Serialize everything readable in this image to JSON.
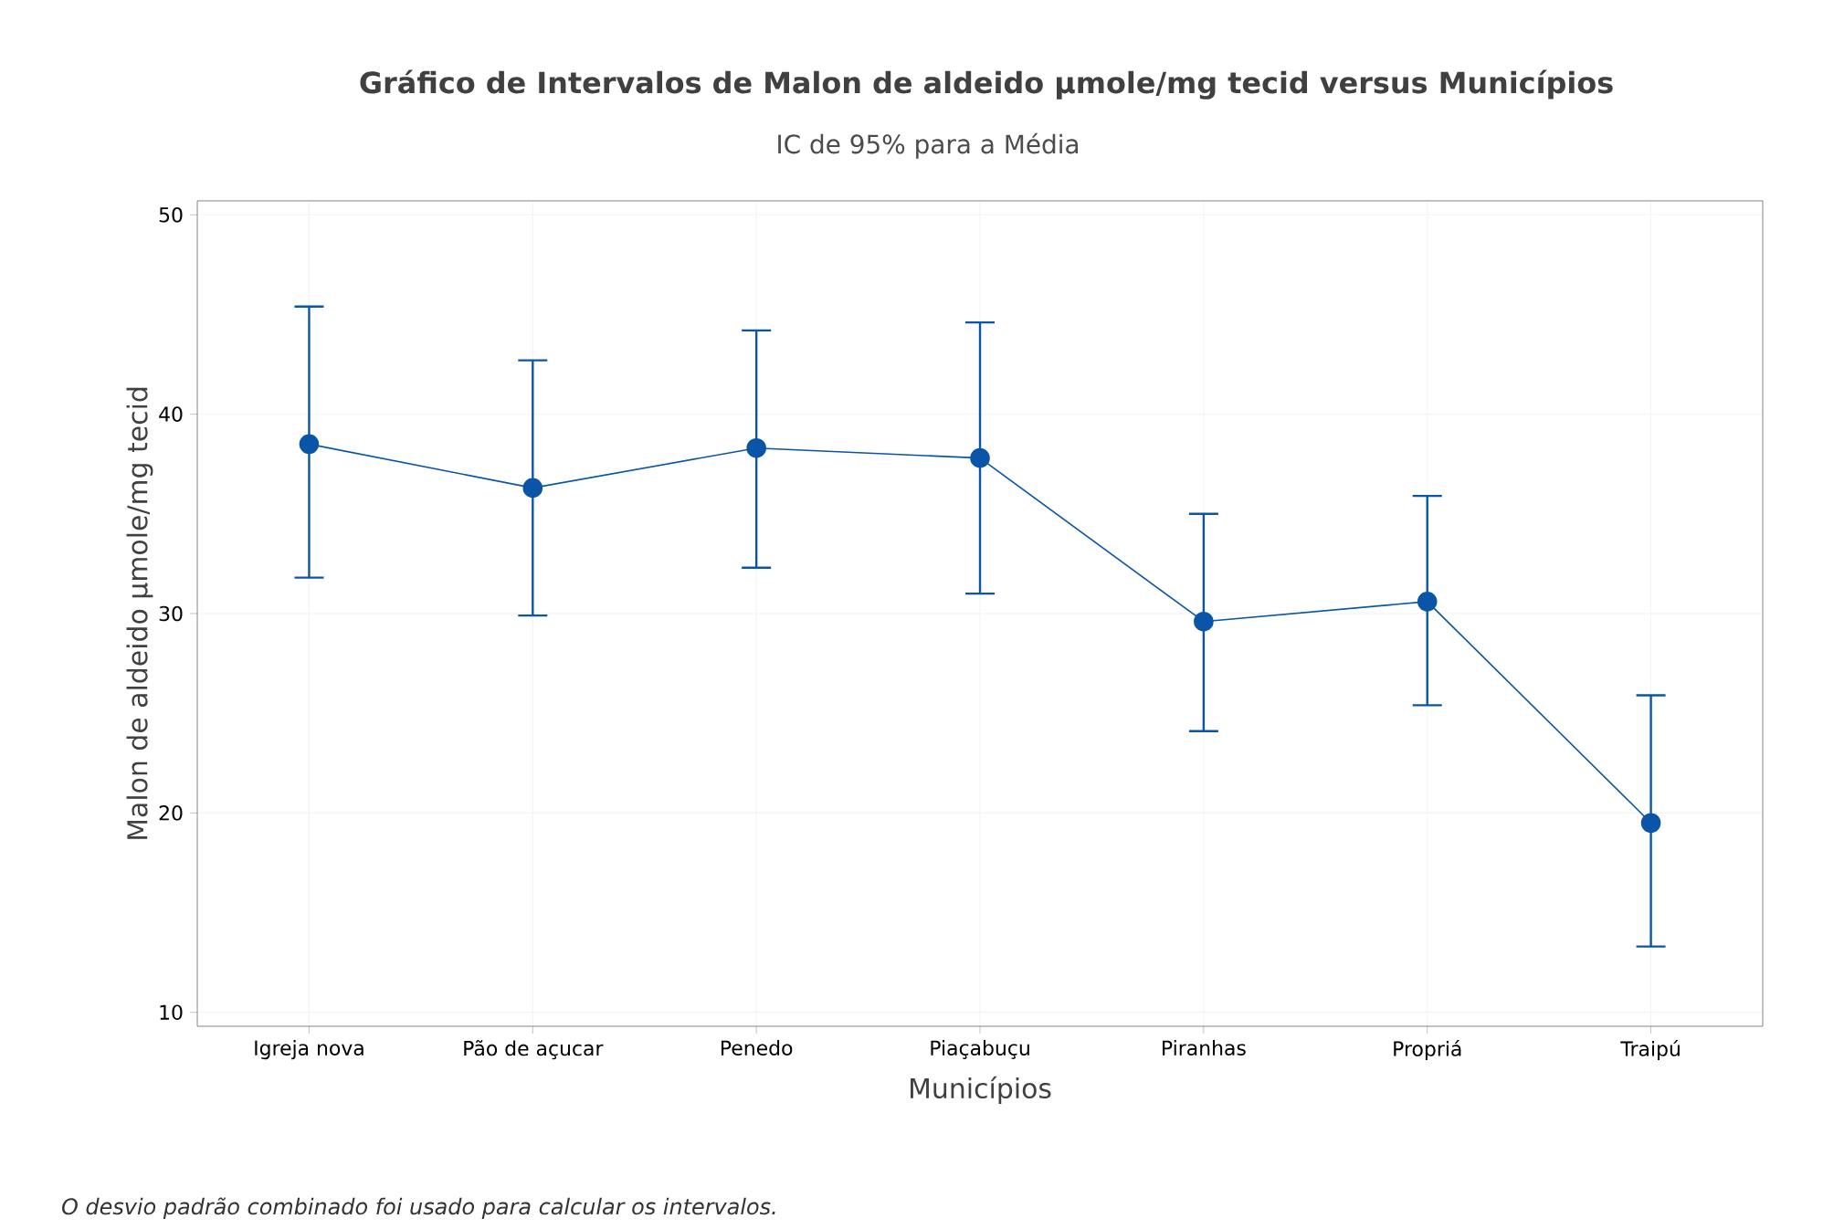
{
  "chart_data": {
    "type": "line",
    "title": "Gráfico de Intervalos de Malon de aldeido µmole/mg tecid versus Municípios",
    "subtitle": "IC de 95% para a Média",
    "xlabel": "Municípios",
    "ylabel": "Malon de aldeido µmole/mg tecid",
    "categories": [
      "Igreja nova",
      "Pão de açucar",
      "Penedo",
      "Piaçabuçu",
      "Piranhas",
      "Propriá",
      "Traipú"
    ],
    "values": [
      38.5,
      36.3,
      38.3,
      37.8,
      29.6,
      30.6,
      19.5
    ],
    "errors": [
      [
        31.8,
        45.4
      ],
      [
        29.9,
        42.7
      ],
      [
        32.3,
        44.2
      ],
      [
        31.0,
        44.6
      ],
      [
        24.1,
        35.0
      ],
      [
        25.4,
        35.9
      ],
      [
        13.3,
        25.9
      ]
    ],
    "color": "#0a55a8",
    "ylim": [
      9.3,
      50.7
    ],
    "yticks": [
      10,
      20,
      30,
      40,
      50
    ],
    "grid": true,
    "marker": "circle",
    "line_style": "solid",
    "annotations": [
      "*O desvio padrão combinado foi usado para calcular os intervalos.*"
    ]
  }
}
